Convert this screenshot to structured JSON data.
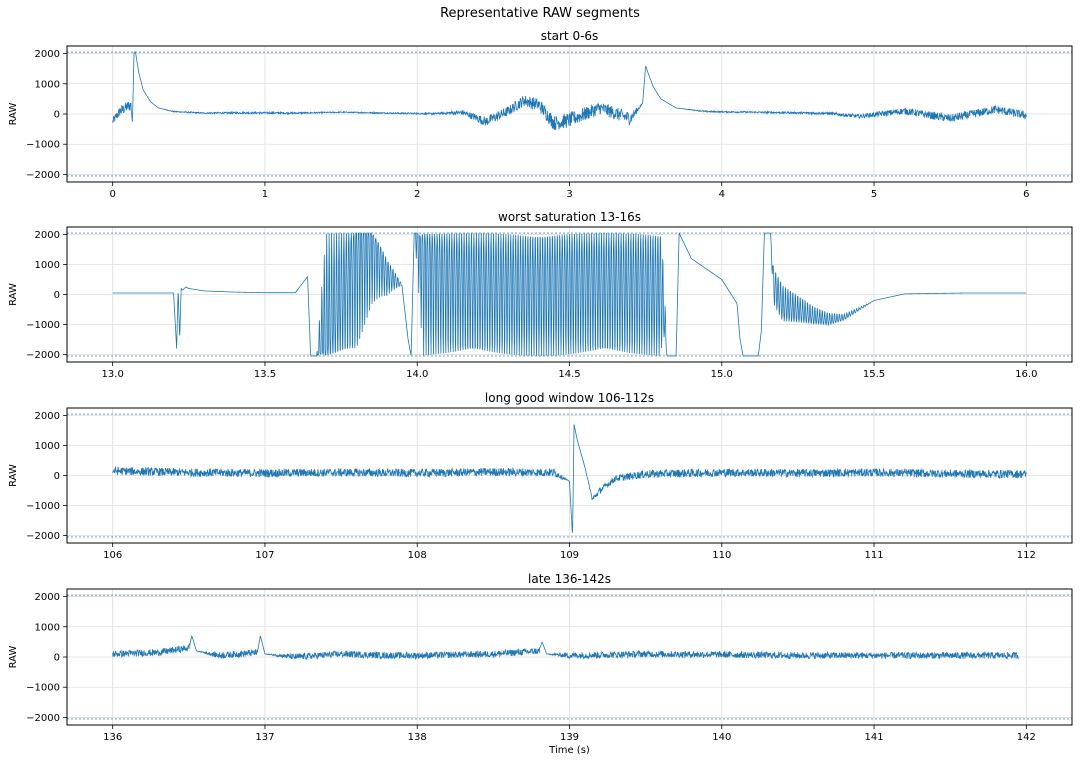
{
  "figure": {
    "title": "Representative RAW segments"
  },
  "colors": {
    "signal": "#1f77b4",
    "limit_line": "#1f77b4",
    "grid": "#dddddd",
    "axes": "#000000"
  },
  "chart_data": [
    {
      "type": "line",
      "title": "start 0-6s",
      "ylabel": "RAW",
      "xlabel": "",
      "xlim": [
        -0.3,
        6.3
      ],
      "ylim": [
        -2250,
        2250
      ],
      "xticks": [
        0,
        1,
        2,
        3,
        4,
        5,
        6
      ],
      "yticks": [
        -2000,
        -1000,
        0,
        1000,
        2000
      ],
      "grid": true,
      "limit_lines": [
        2047,
        -2048
      ],
      "series": [
        {
          "x": [
            0,
            0.05,
            0.1,
            0.12,
            0.13,
            0.14,
            0.15,
            0.17,
            0.2,
            0.25,
            0.3,
            0.4,
            0.6,
            0.9,
            1.2,
            1.5,
            1.8,
            2.1,
            2.3,
            2.45,
            2.6,
            2.7,
            2.8,
            2.9,
            3.0,
            3.2,
            3.4,
            3.48,
            3.5,
            3.52,
            3.55,
            3.6,
            3.7,
            3.9,
            4.2,
            4.5,
            4.7,
            4.9,
            5.2,
            5.5,
            5.8,
            6.0
          ],
          "y": [
            -250,
            100,
            250,
            300,
            -300,
            2047,
            2047,
            1400,
            800,
            400,
            200,
            80,
            30,
            40,
            30,
            60,
            30,
            10,
            50,
            -250,
            100,
            450,
            300,
            -300,
            -200,
            200,
            -150,
            350,
            1600,
            1300,
            900,
            500,
            200,
            80,
            60,
            40,
            20,
            -80,
            100,
            -150,
            150,
            -50
          ],
          "noise": [
            250,
            300,
            350,
            350,
            0,
            0,
            0,
            0,
            0,
            0,
            0,
            30,
            40,
            60,
            50,
            30,
            40,
            50,
            150,
            300,
            300,
            350,
            400,
            450,
            450,
            400,
            400,
            0,
            0,
            0,
            0,
            0,
            0,
            40,
            50,
            60,
            80,
            120,
            200,
            250,
            250,
            250
          ]
        }
      ]
    },
    {
      "type": "line",
      "title": "worst saturation 13-16s",
      "ylabel": "RAW",
      "xlabel": "",
      "xlim": [
        12.85,
        16.15
      ],
      "ylim": [
        -2250,
        2250
      ],
      "xticks": [
        13.0,
        13.5,
        14.0,
        14.5,
        15.0,
        15.5,
        16.0
      ],
      "yticks": [
        -2000,
        -1000,
        0,
        1000,
        2000
      ],
      "grid": true,
      "limit_lines": [
        2047,
        -2048
      ],
      "series": [
        {
          "x": [
            13.0,
            13.2,
            13.21,
            13.215,
            13.22,
            13.225,
            13.23,
            13.24,
            13.25,
            13.3,
            13.4,
            13.5,
            13.6,
            13.64,
            13.65,
            13.67,
            13.7,
            13.75,
            13.8,
            13.85,
            13.9,
            13.95,
            13.97,
            13.98,
            13.99,
            14.0,
            14.02,
            14.05,
            14.1,
            14.2,
            14.3,
            14.4,
            14.5,
            14.6,
            14.7,
            14.8,
            14.82,
            14.83,
            14.85,
            14.86,
            14.9,
            15.0,
            15.05,
            15.06,
            15.07,
            15.08,
            15.1,
            15.12,
            15.13,
            15.14,
            15.15,
            15.16,
            15.17,
            15.2,
            15.3,
            15.35,
            15.4,
            15.5,
            15.6,
            15.8,
            16.0
          ],
          "y": [
            50,
            50,
            -1800,
            200,
            -1500,
            200,
            150,
            250,
            200,
            120,
            80,
            60,
            60,
            600,
            -2048,
            -2048,
            -1800,
            0,
            2047,
            2047,
            800,
            300,
            -1500,
            -2048,
            2047,
            2047,
            1600,
            1200,
            900,
            600,
            450,
            500,
            700,
            700,
            600,
            450,
            -2048,
            -2048,
            -2048,
            2047,
            1200,
            500,
            -300,
            -1500,
            -2048,
            -2048,
            -2048,
            -2048,
            -1200,
            2047,
            2047,
            2047,
            400,
            -400,
            -800,
            -900,
            -800,
            -200,
            20,
            50,
            50
          ],
          "swing": [
            0,
            0,
            0,
            0,
            0,
            0,
            0,
            0,
            0,
            0,
            0,
            0,
            0,
            0,
            0,
            0,
            1.0,
            1.0,
            1.0,
            0.6,
            0.3,
            0,
            0,
            0,
            0,
            0.3,
            1.0,
            1.0,
            1.0,
            1.0,
            1.0,
            1.0,
            1.0,
            1.0,
            1.0,
            1.0,
            0,
            0,
            0,
            0,
            0,
            0,
            0,
            0,
            0,
            0,
            0,
            0,
            0,
            0,
            0,
            0,
            0.3,
            0.3,
            0.15,
            0.1,
            0.05,
            0,
            0,
            0,
            0
          ]
        }
      ]
    },
    {
      "type": "line",
      "title": "long good window 106-112s",
      "ylabel": "RAW",
      "xlabel": "",
      "xlim": [
        105.7,
        112.3
      ],
      "ylim": [
        -2250,
        2250
      ],
      "xticks": [
        106,
        107,
        108,
        109,
        110,
        111,
        112
      ],
      "yticks": [
        -2000,
        -1000,
        0,
        1000,
        2000
      ],
      "grid": true,
      "limit_lines": [
        2047,
        -2048
      ],
      "series": [
        {
          "x": [
            106.0,
            106.5,
            107.0,
            107.5,
            108.0,
            108.5,
            108.9,
            109.0,
            109.02,
            109.03,
            109.05,
            109.1,
            109.15,
            109.2,
            109.3,
            109.5,
            110.0,
            110.5,
            111.0,
            111.5,
            112.0
          ],
          "y": [
            150,
            100,
            80,
            100,
            80,
            120,
            100,
            -200,
            -2048,
            1700,
            1200,
            300,
            -800,
            -500,
            -100,
            50,
            100,
            80,
            100,
            60,
            50
          ],
          "noise": [
            250,
            250,
            250,
            250,
            250,
            250,
            250,
            0,
            0,
            0,
            0,
            0,
            150,
            200,
            200,
            250,
            250,
            250,
            250,
            250,
            250
          ]
        }
      ]
    },
    {
      "type": "line",
      "title": "late 136-142s",
      "ylabel": "RAW",
      "xlabel": "Time (s)",
      "xlim": [
        135.7,
        142.3
      ],
      "ylim": [
        -2250,
        2250
      ],
      "xticks": [
        136,
        137,
        138,
        139,
        140,
        141,
        142
      ],
      "yticks": [
        -2000,
        -1000,
        0,
        1000,
        2000
      ],
      "grid": true,
      "limit_lines": [
        2047,
        -2048
      ],
      "series": [
        {
          "x": [
            136.0,
            136.3,
            136.5,
            136.52,
            136.55,
            136.7,
            136.95,
            136.97,
            137.0,
            137.2,
            137.5,
            137.8,
            138.0,
            138.5,
            138.8,
            138.82,
            138.85,
            139.0,
            139.5,
            140.0,
            140.5,
            141.0,
            141.5,
            141.95
          ],
          "y": [
            100,
            150,
            300,
            700,
            200,
            50,
            150,
            700,
            100,
            0,
            100,
            50,
            50,
            100,
            200,
            500,
            100,
            50,
            100,
            80,
            50,
            50,
            50,
            50
          ],
          "noise": [
            200,
            200,
            200,
            0,
            0,
            200,
            200,
            0,
            0,
            200,
            200,
            200,
            200,
            200,
            200,
            0,
            0,
            200,
            200,
            200,
            200,
            200,
            200,
            200
          ]
        }
      ]
    }
  ]
}
